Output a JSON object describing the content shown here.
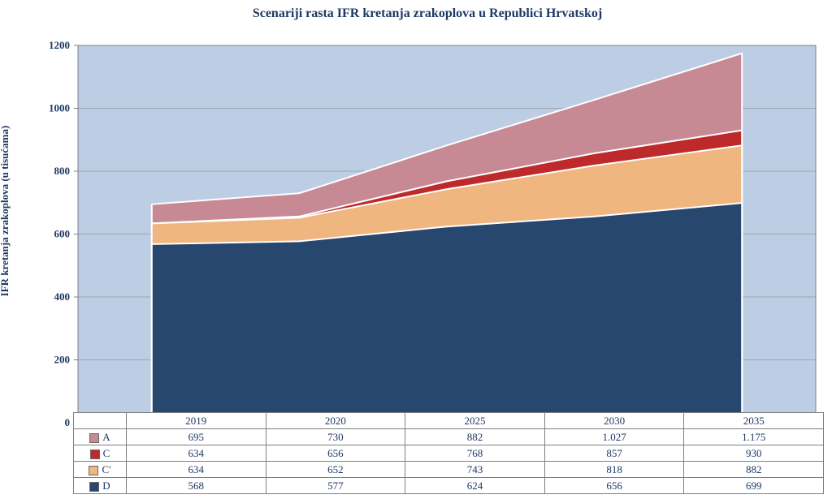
{
  "title": "Scenariji rasta IFR kretanja zrakoplova u Republici Hrvatskoj",
  "y_axis_label": "IFR kretanja zrakoplova\n(u tisućama)",
  "chart": {
    "type": "area",
    "background_plot": "#bdcde4",
    "background_outer": "#ffffff",
    "grid_color": "#7f7f7f",
    "axis_color": "#7f7f7f",
    "ylim": [
      0,
      1200
    ],
    "ytick_step": 200,
    "categories": [
      "2019",
      "2020",
      "2025",
      "2030",
      "2035"
    ],
    "series": [
      {
        "name": "A",
        "color": "#c78a94",
        "values": [
          695,
          730,
          882,
          1027,
          1175
        ],
        "label": "A"
      },
      {
        "name": "C",
        "color": "#be2a2b",
        "values": [
          634,
          656,
          768,
          857,
          930
        ],
        "label": "C"
      },
      {
        "name": "Cp",
        "color": "#efb67f",
        "values": [
          634,
          652,
          743,
          818,
          882
        ],
        "label": "C'"
      },
      {
        "name": "D",
        "color": "#27476e",
        "values": [
          568,
          577,
          624,
          656,
          699
        ],
        "label": "D"
      }
    ],
    "area_stroke": "#ffffff",
    "area_stroke_width": 2
  },
  "table": {
    "rows": [
      {
        "key": "A",
        "label": "A",
        "color": "#c78a94",
        "cells": [
          "695",
          "730",
          "882",
          "1.027",
          "1.175"
        ]
      },
      {
        "key": "C",
        "label": "C",
        "color": "#be2a2b",
        "cells": [
          "634",
          "656",
          "768",
          "857",
          "930"
        ]
      },
      {
        "key": "Cp",
        "label": "C'",
        "color": "#efb67f",
        "cells": [
          "634",
          "652",
          "743",
          "818",
          "882"
        ]
      },
      {
        "key": "D",
        "label": "D",
        "color": "#27476e",
        "cells": [
          "568",
          "577",
          "624",
          "656",
          "699"
        ]
      }
    ]
  }
}
